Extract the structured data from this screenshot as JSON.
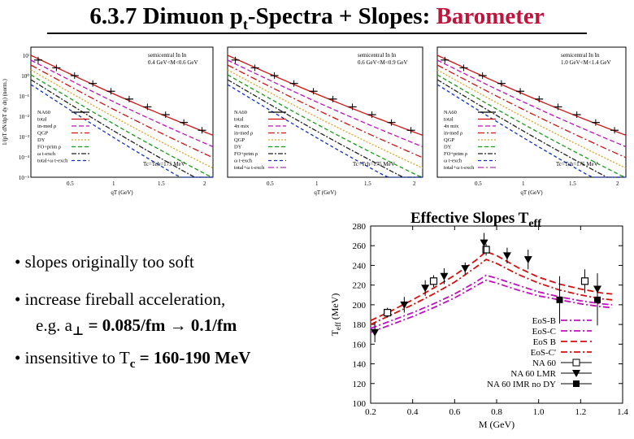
{
  "title": {
    "main": "6.3.7 Dimuon p",
    "sub": "t",
    "rest": "-Spectra + Slopes: ",
    "highlight": "Barometer"
  },
  "colors": {
    "highlight": "#c0143c",
    "nlmr": "#000000",
    "eosB": "#d41010",
    "eosC": "#c010c0"
  },
  "spectra_panels": [
    {
      "label_line1": "semicentral In In",
      "label_line2": "0.4 GeV<M<0.6 GeV",
      "temp_label": "Tc=Tch=175 MeV",
      "ylabel": "1/(pT dN/dpT dy dη) (norm.)",
      "xlabel": "qT (GeV)",
      "y_ticks": [
        "10ⁱ",
        "10⁰",
        "10⁻¹",
        "10⁻²",
        "10⁻³",
        "10⁻⁴",
        "10⁻⁵"
      ],
      "x_ticks": [
        "0.5",
        "1",
        "1.5",
        "2"
      ],
      "legend": [
        "NA60",
        "total",
        "in-med ρ",
        "QGP",
        "DY",
        "FO+prim ρ",
        "ω t-exch",
        "total+ω t-exch"
      ]
    },
    {
      "label_line1": "semicentral In In",
      "label_line2": "0.6 GeV<M<0.9 GeV",
      "temp_label": "Tc=Tch=175 MeV",
      "ylabel": "",
      "xlabel": "qT (GeV)",
      "y_ticks": [],
      "x_ticks": [
        "0.5",
        "1",
        "1.5",
        "2"
      ],
      "legend": [
        "NA60",
        "total",
        "4π mix",
        "in-med ρ",
        "QGP",
        "DY",
        "FO+prim ρ",
        "ω t-exch",
        "total+ω t-exch"
      ]
    },
    {
      "label_line1": "semicentral In In",
      "label_line2": "1.0 GeV<M<1.4 GeV",
      "temp_label": "Tc=Tch=175 MeV",
      "ylabel": "",
      "xlabel": "qT (GeV)",
      "y_ticks": [],
      "x_ticks": [
        "0.5",
        "1",
        "1.5",
        "2"
      ],
      "legend": [
        "NA60",
        "total",
        "4π mix",
        "in-med ρ",
        "QGP",
        "DY",
        "FO+prim ρ",
        "ω t-exch",
        "total+ω t-exch"
      ]
    }
  ],
  "bullets": {
    "b1": "• slopes originally too soft",
    "b2": "• increase fireball acceleration,",
    "b3_prefix": "e.g.   a",
    "b3_sym": "⊥",
    "b3_rest": " = 0.085/fm → 0.1/fm",
    "b4_prefix": "• insensitive to T",
    "b4_sub": "c",
    "b4_rest": " = 160-190 MeV"
  },
  "chart_data": {
    "type": "line",
    "title": "Effective Slopes T",
    "title_sub": "eff",
    "xlabel": "M (GeV)",
    "ylabel_main": "T",
    "ylabel_sub": "eff",
    "ylabel_unit": " (MeV)",
    "xlim": [
      0.2,
      1.4
    ],
    "ylim": [
      100,
      280
    ],
    "x_ticks": [
      0.2,
      0.4,
      0.6,
      0.8,
      1.0,
      1.2,
      1.4
    ],
    "y_ticks": [
      100,
      120,
      140,
      160,
      180,
      200,
      220,
      240,
      260,
      280
    ],
    "legend_placement": "bottom-right",
    "series": [
      {
        "name": "EoS-B",
        "style": "dash-dot",
        "color": "#c010c0",
        "x": [
          0.2,
          0.3,
          0.4,
          0.5,
          0.6,
          0.7,
          0.75,
          0.8,
          0.9,
          1.0,
          1.1,
          1.2,
          1.3,
          1.35
        ],
        "y": [
          172,
          180,
          188,
          197,
          207,
          219,
          225,
          222,
          215,
          209,
          205,
          201,
          198,
          197
        ]
      },
      {
        "name": "EoS-C",
        "style": "dash-dot",
        "color": "#c010c0",
        "x": [
          0.2,
          0.3,
          0.4,
          0.5,
          0.6,
          0.7,
          0.75,
          0.8,
          0.9,
          1.0,
          1.1,
          1.2,
          1.3,
          1.35
        ],
        "y": [
          176,
          184,
          192,
          201,
          211,
          223,
          230,
          227,
          220,
          213,
          208,
          204,
          201,
          200
        ]
      },
      {
        "name": "EoS B",
        "style": "dash",
        "color": "#d41010",
        "x": [
          0.2,
          0.3,
          0.4,
          0.5,
          0.6,
          0.7,
          0.75,
          0.8,
          0.9,
          1.0,
          1.1,
          1.2,
          1.3,
          1.35
        ],
        "y": [
          184,
          194,
          205,
          217,
          230,
          245,
          254,
          250,
          238,
          228,
          221,
          216,
          212,
          211
        ]
      },
      {
        "name": "EoS-C'",
        "style": "dash-dot",
        "color": "#d41010",
        "x": [
          0.2,
          0.3,
          0.4,
          0.5,
          0.6,
          0.7,
          0.75,
          0.8,
          0.9,
          1.0,
          1.1,
          1.2,
          1.3,
          1.35
        ],
        "y": [
          180,
          190,
          200,
          211,
          223,
          238,
          246,
          242,
          231,
          222,
          215,
          210,
          206,
          205
        ]
      },
      {
        "name": "NA 60",
        "marker": "square-open",
        "color": "#000000",
        "x": [
          0.28,
          0.5,
          0.75,
          1.22
        ],
        "y": [
          192,
          224,
          256,
          224
        ],
        "err": [
          5,
          6,
          6,
          12
        ]
      },
      {
        "name": "NA 60 LMR",
        "marker": "triangle-down",
        "color": "#000000",
        "x": [
          0.22,
          0.36,
          0.46,
          0.55,
          0.65,
          0.74,
          0.85,
          0.95,
          1.28
        ],
        "y": [
          172,
          200,
          217,
          229,
          237,
          263,
          250,
          246,
          216
        ],
        "err": [
          10,
          8,
          8,
          8,
          6,
          10,
          8,
          10,
          16
        ]
      },
      {
        "name": "NA 60 IMR no DY",
        "marker": "square-filled",
        "color": "#000000",
        "x": [
          1.1,
          1.28
        ],
        "y": [
          205,
          205
        ],
        "err": [
          24,
          26
        ]
      }
    ]
  }
}
